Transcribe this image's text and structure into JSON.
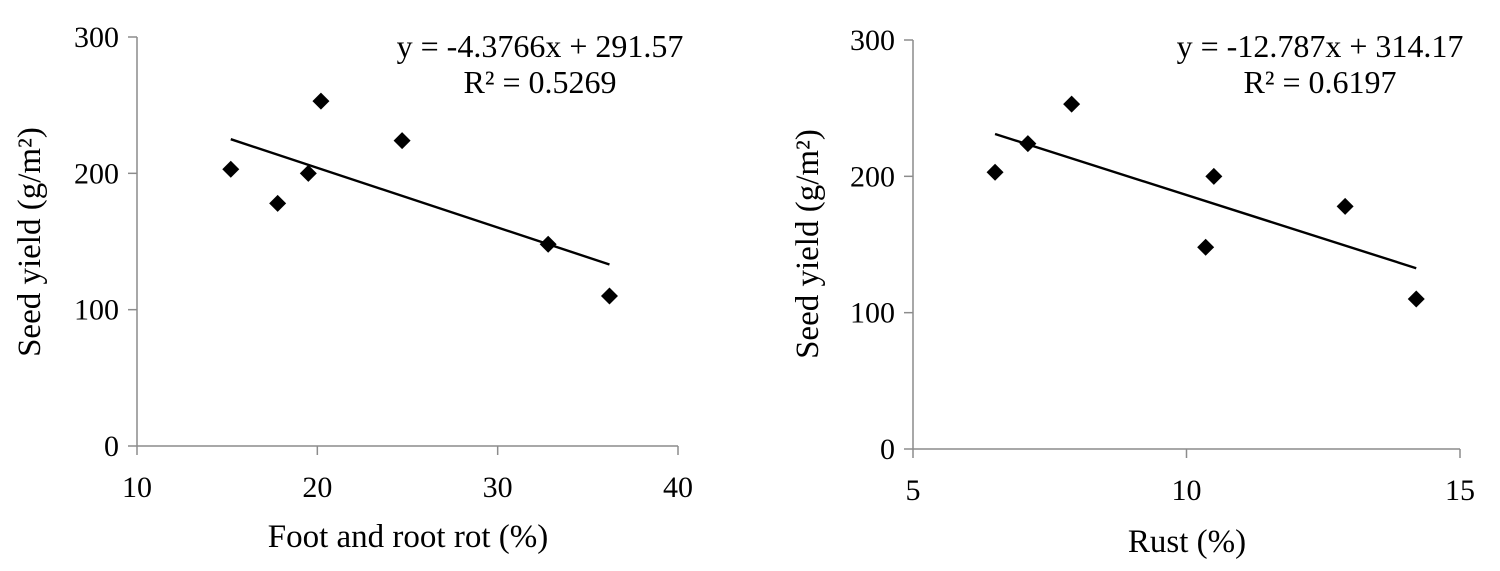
{
  "chart_data": [
    {
      "type": "scatter",
      "title": "",
      "xlabel": "Foot and root rot (%)",
      "ylabel": "Seed yield (g/m²)",
      "xlim": [
        10,
        40
      ],
      "ylim": [
        0,
        300
      ],
      "xticks": [
        10,
        20,
        30,
        40
      ],
      "yticks": [
        0,
        100,
        200,
        300
      ],
      "grid": false,
      "marker": "diamond",
      "points": [
        {
          "x": 15.2,
          "y": 203
        },
        {
          "x": 17.8,
          "y": 178
        },
        {
          "x": 19.5,
          "y": 200
        },
        {
          "x": 20.2,
          "y": 253
        },
        {
          "x": 24.7,
          "y": 224
        },
        {
          "x": 32.8,
          "y": 148
        },
        {
          "x": 36.2,
          "y": 110
        }
      ],
      "trendline": {
        "slope": -4.3766,
        "intercept": 291.57,
        "x_range": [
          15.2,
          36.2
        ]
      },
      "equation": "y = -4.3766x + 291.57",
      "r2": "R² = 0.5269"
    },
    {
      "type": "scatter",
      "title": "",
      "xlabel": "Rust (%)",
      "ylabel": "Seed yield (g/m²)",
      "xlim": [
        5,
        15
      ],
      "ylim": [
        0,
        300
      ],
      "xticks": [
        5,
        10,
        15
      ],
      "yticks": [
        0,
        100,
        200,
        300
      ],
      "grid": false,
      "marker": "diamond",
      "points": [
        {
          "x": 6.5,
          "y": 203
        },
        {
          "x": 7.1,
          "y": 224
        },
        {
          "x": 7.9,
          "y": 253
        },
        {
          "x": 10.35,
          "y": 148
        },
        {
          "x": 10.5,
          "y": 200
        },
        {
          "x": 12.9,
          "y": 178
        },
        {
          "x": 14.2,
          "y": 110
        }
      ],
      "trendline": {
        "slope": -12.787,
        "intercept": 314.17,
        "x_range": [
          6.5,
          14.2
        ]
      },
      "equation": "y = -12.787x + 314.17",
      "r2": "R² = 0.6197"
    }
  ]
}
